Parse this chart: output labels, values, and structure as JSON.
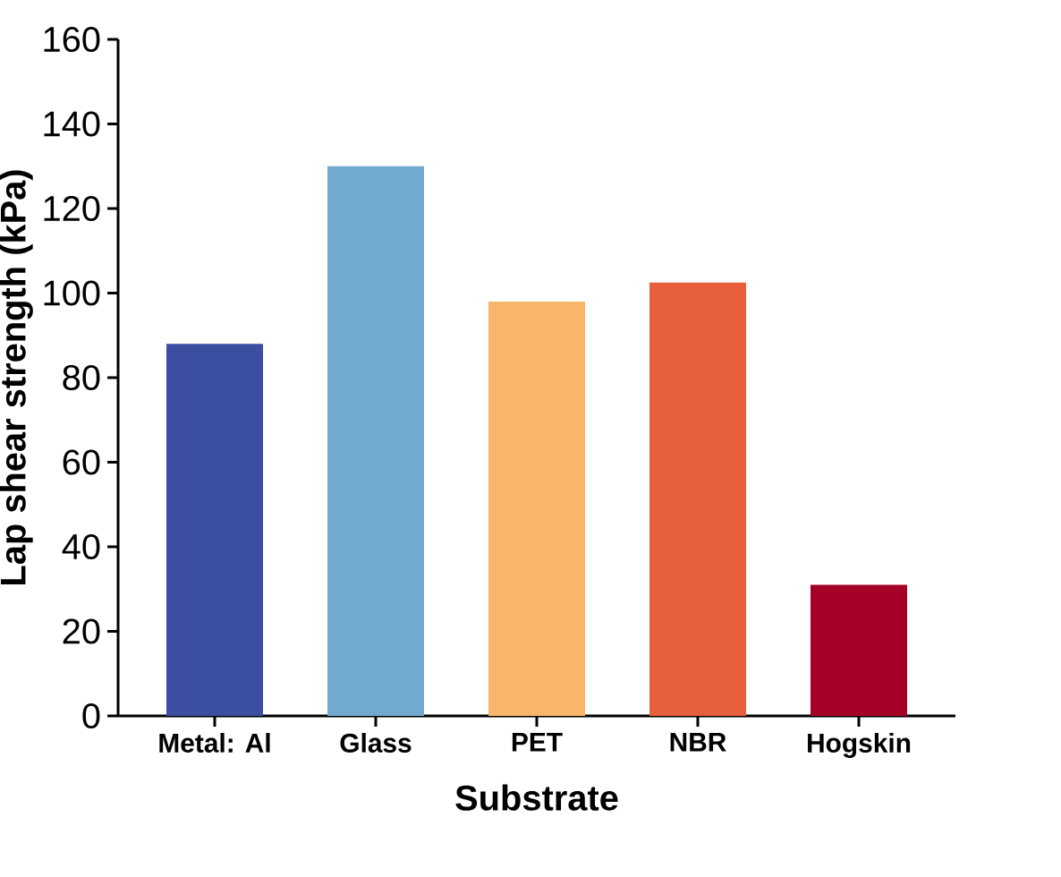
{
  "chart_data": {
    "type": "bar",
    "categories": [
      "Metal: Al",
      "Glass",
      "PET",
      "NBR",
      "Hogskin"
    ],
    "values": [
      88,
      130,
      98,
      102.5,
      31
    ],
    "colors": [
      "#3b4ea0",
      "#72a9cf",
      "#f9b66a",
      "#e85f3c",
      "#a50026"
    ],
    "xlabel": "Substrate",
    "ylabel": "Lap shear strength (kPa)",
    "ylim": [
      0,
      160
    ],
    "yticks": [
      0,
      20,
      40,
      60,
      80,
      100,
      120,
      140,
      160
    ],
    "grid": false
  }
}
